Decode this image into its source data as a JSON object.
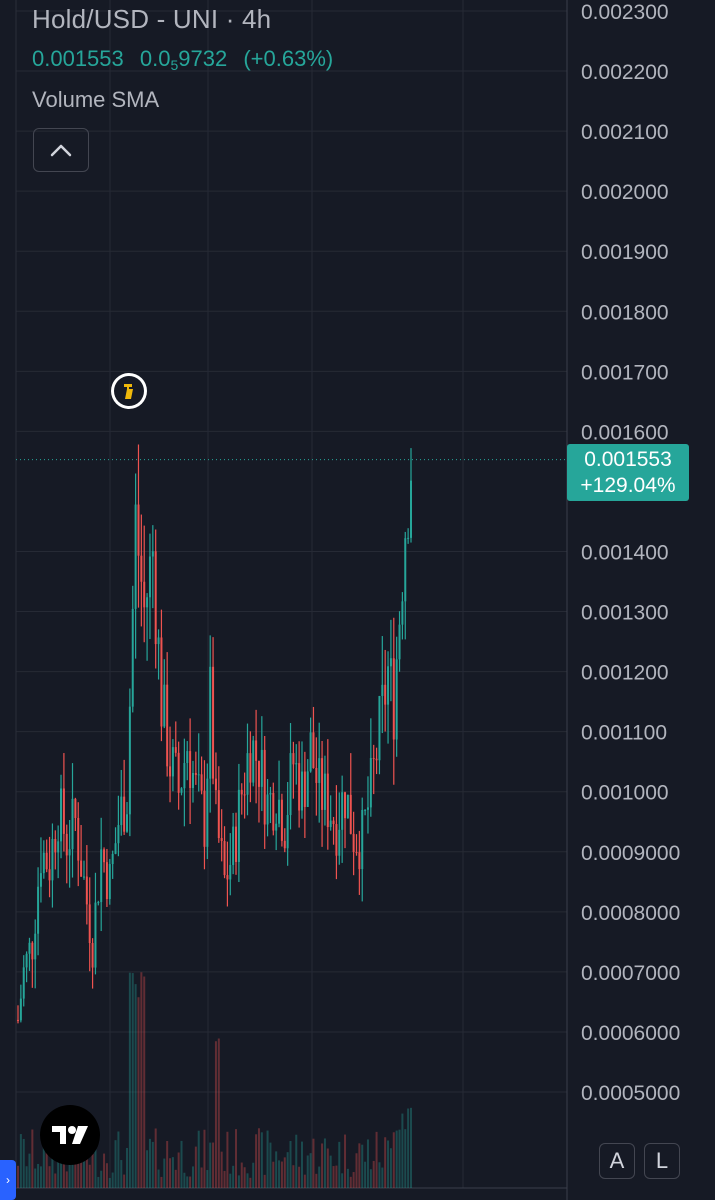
{
  "header": {
    "title": "Hold/USD - UNI · 4h",
    "last_price": "0.001553",
    "change_prefix": "0.0",
    "change_sub": "5",
    "change_suffix": "9732",
    "change_pct": "(+0.63%)",
    "indicator": "Volume SMA"
  },
  "price_tag": {
    "price": "0.001553",
    "change": "+129.04%"
  },
  "scale_buttons": {
    "auto": "A",
    "log": "L"
  },
  "colors": {
    "background": "#161a25",
    "up": "#26a69a",
    "down": "#ef5350",
    "grid": "#262a35",
    "axis_text": "#b2b5be",
    "accent": "#2962ff"
  },
  "icons": {
    "collapse": "chevron-up-icon",
    "logo": "tradingview-logo-icon",
    "event": "token-event-icon",
    "side_tab": "chevron-right-icon"
  },
  "chart_data": {
    "type": "candlestick",
    "y_axis": {
      "position": "right",
      "ticks": [
        "0.002300",
        "0.002200",
        "0.002100",
        "0.002000",
        "0.001900",
        "0.001800",
        "0.001700",
        "0.001600",
        "0.001400",
        "0.001300",
        "0.001200",
        "0.001100",
        "0.001000",
        "0.0009000",
        "0.0008000",
        "0.0007000",
        "0.0006000",
        "0.0005000"
      ],
      "ylim": [
        0.00035,
        0.00233
      ]
    },
    "grid": true,
    "last_price_line": 0.001553,
    "anchors": [
      [
        0,
        0.00062
      ],
      [
        2,
        0.0007
      ],
      [
        5,
        0.00075
      ],
      [
        8,
        0.0009
      ],
      [
        11,
        0.00088
      ],
      [
        14,
        0.00097
      ],
      [
        17,
        0.00092
      ],
      [
        20,
        0.00095
      ],
      [
        23,
        0.00085
      ],
      [
        26,
        0.00075
      ],
      [
        29,
        0.0009
      ],
      [
        32,
        0.00085
      ],
      [
        35,
        0.00095
      ],
      [
        38,
        0.001
      ],
      [
        41,
        0.00145
      ],
      [
        44,
        0.0013
      ],
      [
        47,
        0.0014
      ],
      [
        50,
        0.00115
      ],
      [
        53,
        0.00105
      ],
      [
        56,
        0.001
      ],
      [
        59,
        0.00108
      ],
      [
        62,
        0.001
      ],
      [
        65,
        0.00095
      ],
      [
        67,
        0.00115
      ],
      [
        69,
        0.00095
      ],
      [
        72,
        0.00085
      ],
      [
        75,
        0.0009
      ],
      [
        78,
        0.001
      ],
      [
        81,
        0.00108
      ],
      [
        84,
        0.00105
      ],
      [
        87,
        0.00098
      ],
      [
        90,
        0.001
      ],
      [
        93,
        0.00095
      ],
      [
        96,
        0.00105
      ],
      [
        99,
        0.001
      ],
      [
        102,
        0.00107
      ],
      [
        105,
        0.001
      ],
      [
        108,
        0.00098
      ],
      [
        111,
        0.00095
      ],
      [
        114,
        0.001
      ],
      [
        117,
        0.00093
      ],
      [
        120,
        0.00092
      ],
      [
        123,
        0.001
      ],
      [
        126,
        0.0011
      ],
      [
        129,
        0.0012
      ],
      [
        131,
        0.00115
      ],
      [
        133,
        0.0013
      ],
      [
        135,
        0.00145
      ],
      [
        137,
        0.00155
      ]
    ],
    "volume": {
      "max_index": 136
    }
  }
}
